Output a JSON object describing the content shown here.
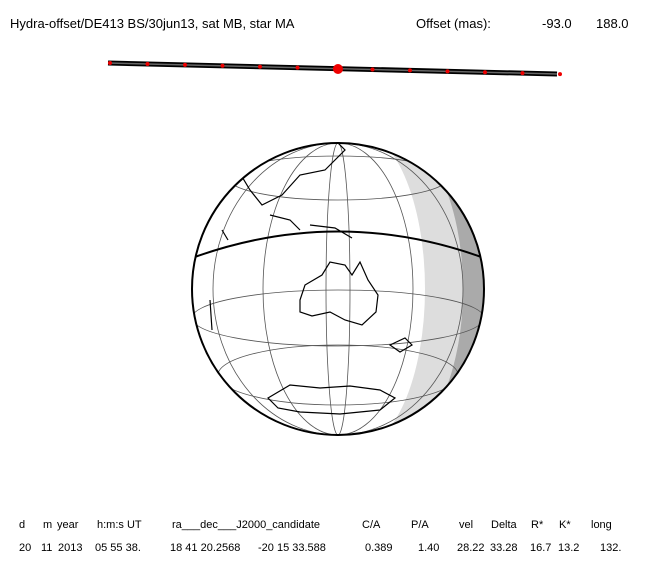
{
  "header": {
    "title": "Hydra-offset/DE413 BS/30jun13, sat MB, star MA",
    "offset_label": "Offset (mas):",
    "offset_x": "-93.0",
    "offset_y": "188.0"
  },
  "table": {
    "columns": [
      "d",
      "m",
      "year",
      "h:m:s UT",
      "ra___dec___J2000_candidate",
      "C/A",
      "P/A",
      "vel",
      "Delta",
      "R*",
      "K*",
      "long"
    ],
    "row": [
      "20",
      "11",
      "2013",
      "05 55 38.",
      "18 41 20.2568",
      "-20 15 33.588",
      "0.389",
      "1.40",
      "28.22",
      "33.28",
      "16.7",
      "13.2",
      "132."
    ]
  }
}
